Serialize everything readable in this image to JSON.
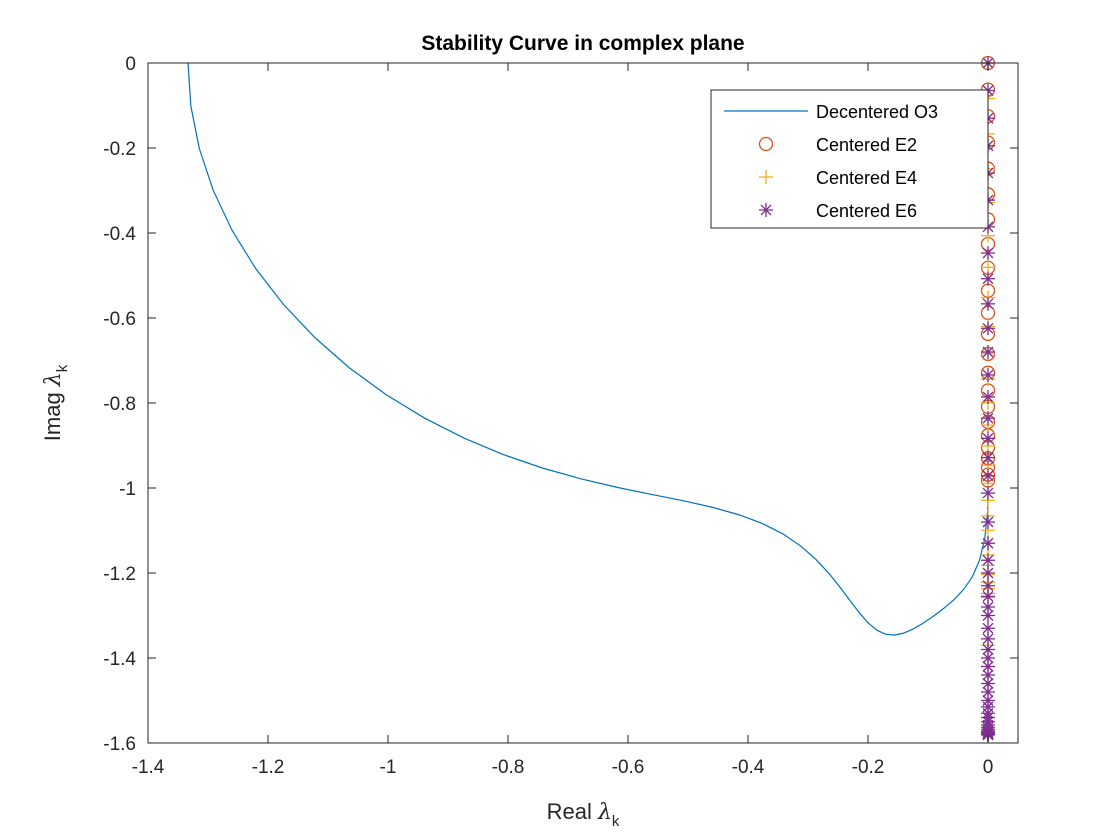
{
  "chart_data": {
    "type": "line",
    "title": "Stability Curve in complex plane",
    "xlabel": {
      "main": "Real ",
      "symbol": "λ",
      "sub": "k"
    },
    "ylabel": {
      "main": "Imag ",
      "symbol": "λ",
      "sub": "k"
    },
    "xlim": [
      -1.4,
      0.05
    ],
    "ylim": [
      -1.6,
      0
    ],
    "xticks": [
      -1.4,
      -1.2,
      -1,
      -0.8,
      -0.6,
      -0.4,
      -0.2,
      0
    ],
    "xtick_labels": [
      "-1.4",
      "-1.2",
      "-1",
      "-0.8",
      "-0.6",
      "-0.4",
      "-0.2",
      "0"
    ],
    "yticks": [
      0,
      -0.2,
      -0.4,
      -0.6,
      -0.8,
      -1,
      -1.2,
      -1.4,
      -1.6
    ],
    "ytick_labels": [
      "0",
      "-0.2",
      "-0.4",
      "-0.6",
      "-0.8",
      "-1",
      "-1.2",
      "-1.4",
      "-1.6"
    ],
    "grid": false,
    "legend_position": "top-right",
    "colors": {
      "o3": "#0072BD",
      "e2": "#D95319",
      "e4": "#EDB120",
      "e6": "#7E2F8E"
    },
    "series": [
      {
        "name": "Decentered O3",
        "style": "line",
        "color": "#0072BD",
        "x": [
          -1.3333,
          -1.3286,
          -1.3145,
          -1.2915,
          -1.26,
          -1.2206,
          -1.1743,
          -1.1218,
          -1.0643,
          -1.0029,
          -0.9388,
          -0.873,
          -0.8069,
          -0.7415,
          -0.6778,
          -0.6169,
          -0.5595,
          -0.5064,
          -0.4579,
          -0.4144,
          -0.3758,
          -0.342,
          -0.3127,
          -0.2873,
          -0.2653,
          -0.2461,
          -0.2291,
          -0.2137,
          -0.1992,
          -0.1851,
          -0.171,
          -0.1565,
          -0.1413,
          -0.1254,
          -0.1086,
          -0.0914,
          -0.0741,
          -0.057,
          -0.0409,
          -0.0264,
          -0.0143,
          -0.0053,
          -0.0005,
          0.0
        ],
        "y": [
          0.0,
          -0.1012,
          -0.2012,
          -0.299,
          -0.3935,
          -0.4835,
          -0.568,
          -0.6462,
          -0.7173,
          -0.7805,
          -0.8357,
          -0.8828,
          -0.9218,
          -0.9535,
          -0.9787,
          -0.9988,
          -1.0154,
          -1.0305,
          -1.0459,
          -1.0632,
          -1.0836,
          -1.1078,
          -1.136,
          -1.1673,
          -1.2007,
          -1.2344,
          -1.2665,
          -1.2949,
          -1.318,
          -1.3346,
          -1.3439,
          -1.3461,
          -1.3418,
          -1.3322,
          -1.3185,
          -1.3021,
          -1.2836,
          -1.263,
          -1.2392,
          -1.2097,
          -1.1708,
          -1.1186,
          -1.052,
          -1.0
        ]
      },
      {
        "name": "Centered E2",
        "style": "marker-o",
        "color": "#D95319",
        "x": [
          0,
          0,
          0,
          0,
          0,
          0,
          0,
          0,
          0,
          0,
          0,
          0,
          0,
          0,
          0,
          0,
          0,
          0,
          0,
          0,
          0,
          0,
          0
        ],
        "y": [
          0,
          -0.0627,
          -0.1253,
          -0.1874,
          -0.2487,
          -0.309,
          -0.3681,
          -0.4258,
          -0.4818,
          -0.5358,
          -0.5878,
          -0.6374,
          -0.6845,
          -0.729,
          -0.7705,
          -0.809,
          -0.8443,
          -0.8763,
          -0.9048,
          -0.9298,
          -0.9511,
          -0.9686,
          -0.9823
        ]
      },
      {
        "name": "Centered E4",
        "style": "marker-plus",
        "color": "#EDB120",
        "x": [
          0,
          0,
          0,
          0,
          0,
          0,
          0,
          0,
          0,
          0,
          0,
          0,
          0,
          0,
          0,
          0,
          0,
          0,
          0,
          0,
          0,
          0,
          0,
          0,
          0,
          0,
          0,
          0
        ],
        "y": [
          0,
          -0.0837,
          -0.1668,
          -0.2487,
          -0.3287,
          -0.4063,
          -0.4808,
          -0.552,
          -0.6196,
          -0.6834,
          -0.7434,
          -0.7996,
          -0.8521,
          -0.9011,
          -0.9469,
          -0.9894,
          -1.029,
          -1.0656,
          -1.0993,
          -1.13,
          -1.1576,
          -1.1821,
          -1.2034,
          -1.2216,
          -1.2366,
          -1.2484,
          -1.2571,
          -1.37
        ]
      },
      {
        "name": "Centered E6",
        "style": "marker-star",
        "color": "#7E2F8E",
        "x": [
          0,
          0,
          0,
          0,
          0,
          0,
          0,
          0,
          0,
          0,
          0,
          0,
          0,
          0,
          0,
          0,
          0,
          0,
          0,
          0,
          0,
          0,
          0,
          0,
          0,
          0,
          0,
          0,
          0,
          0,
          0,
          0,
          0,
          0,
          0,
          0,
          0,
          0,
          0,
          0,
          0,
          0,
          0,
          0,
          0,
          0,
          0,
          0,
          0,
          0
        ],
        "y": [
          0,
          -0.065,
          -0.13,
          -0.1947,
          -0.259,
          -0.3226,
          -0.3854,
          -0.4471,
          -0.5076,
          -0.5667,
          -0.6242,
          -0.68,
          -0.7339,
          -0.7858,
          -0.8356,
          -0.8832,
          -0.9285,
          -0.9714,
          -1.012,
          -1.08,
          -1.13,
          -1.17,
          -1.2,
          -1.23,
          -1.255,
          -1.28,
          -1.3,
          -1.33,
          -1.355,
          -1.38,
          -1.4,
          -1.42,
          -1.44,
          -1.46,
          -1.48,
          -1.5,
          -1.515,
          -1.53,
          -1.54,
          -1.55,
          -1.558,
          -1.564,
          -1.569,
          -1.573,
          -1.576,
          -1.578,
          -1.579,
          -1.58,
          -1.5805,
          -1.581
        ]
      }
    ]
  }
}
